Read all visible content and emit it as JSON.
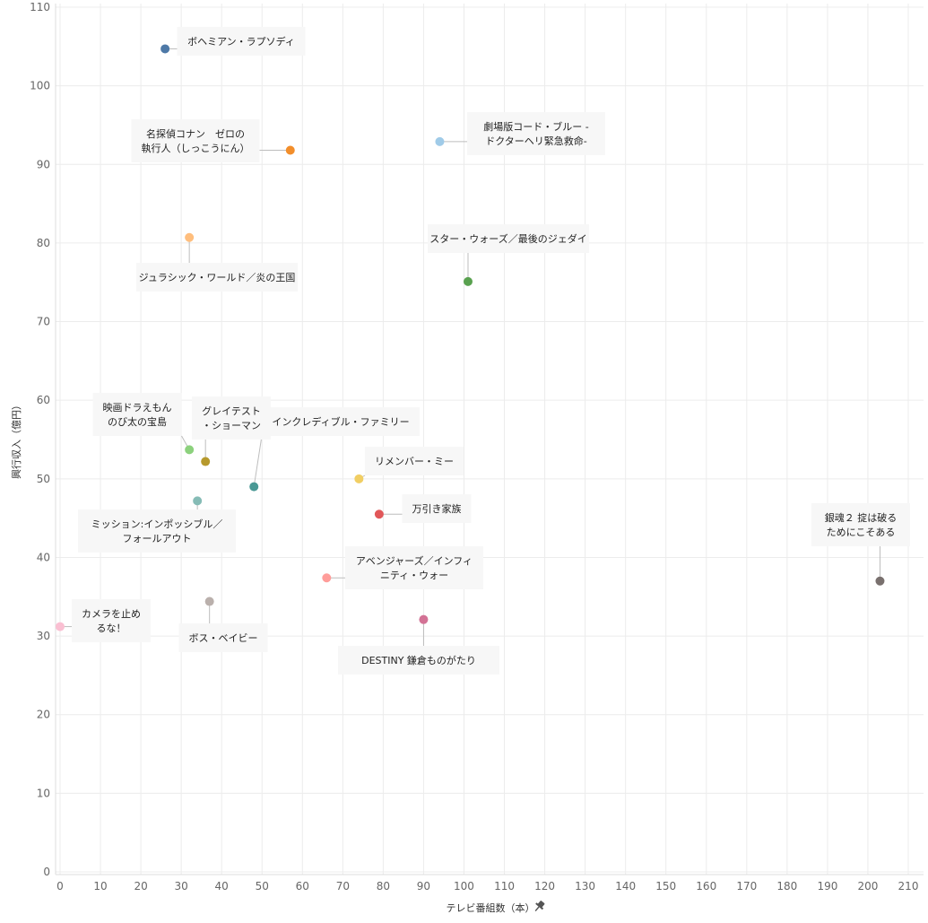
{
  "chart_data": {
    "type": "scatter",
    "xlabel": "テレビ番組数（本）",
    "ylabel": "興行収入（億円）",
    "xlim": [
      0,
      210
    ],
    "ylim": [
      0,
      110
    ],
    "x_ticks": [
      0,
      10,
      20,
      30,
      40,
      50,
      60,
      70,
      80,
      90,
      100,
      110,
      120,
      130,
      140,
      150,
      160,
      170,
      180,
      190,
      200,
      210
    ],
    "y_ticks": [
      0,
      10,
      20,
      30,
      40,
      50,
      60,
      70,
      80,
      90,
      100,
      110
    ],
    "grid": true,
    "pin_icon": "pin-icon",
    "points": [
      {
        "label": "ボヘミアン・ラプソディ",
        "x": 26,
        "y": 104.7,
        "color": "#4e79a7"
      },
      {
        "label": "名探偵コナン　ゼロの\n執行人（しっこうにん）",
        "x": 57,
        "y": 91.8,
        "color": "#f28e2b"
      },
      {
        "label": "劇場版コード・ブルー -\nドクターヘリ緊急救命-",
        "x": 94,
        "y": 92.9,
        "color": "#a0cbe8"
      },
      {
        "label": "ジュラシック・ワールド／炎の王国",
        "x": 32,
        "y": 80.7,
        "color": "#ffbe7d"
      },
      {
        "label": "スター・ウォーズ／最後のジェダイ",
        "x": 101,
        "y": 75.1,
        "color": "#59a14f"
      },
      {
        "label": "映画ドラえもん\nのび太の宝島",
        "x": 32,
        "y": 53.7,
        "color": "#8cd17d"
      },
      {
        "label": "グレイテスト\n・ショーマン",
        "x": 36,
        "y": 52.2,
        "color": "#b6992d"
      },
      {
        "label": "インクレディブル・ファミリー",
        "x": 48,
        "y": 49.0,
        "color": "#499894"
      },
      {
        "label": "リメンバー・ミー",
        "x": 74,
        "y": 50.0,
        "color": "#f1ce63"
      },
      {
        "label": "ミッション:インポッシブル／\nフォールアウト",
        "x": 34,
        "y": 47.2,
        "color": "#86bcb6"
      },
      {
        "label": "万引き家族",
        "x": 79,
        "y": 45.5,
        "color": "#e15759"
      },
      {
        "label": "アベンジャーズ／インフィ\nニティ・ウォー",
        "x": 66,
        "y": 37.4,
        "color": "#ff9d9a"
      },
      {
        "label": "ボス・ベイビー",
        "x": 37,
        "y": 34.4,
        "color": "#bab0ac"
      },
      {
        "label": "カメラを止め\nるな！",
        "x": 0,
        "y": 31.2,
        "color": "#fabfd2"
      },
      {
        "label": "DESTINY 鎌倉ものがたり",
        "x": 90,
        "y": 32.1,
        "color": "#d37295"
      },
      {
        "label": "銀魂２ 掟は破る\nためにこそある",
        "x": 203,
        "y": 37.0,
        "color": "#79706e"
      }
    ]
  }
}
